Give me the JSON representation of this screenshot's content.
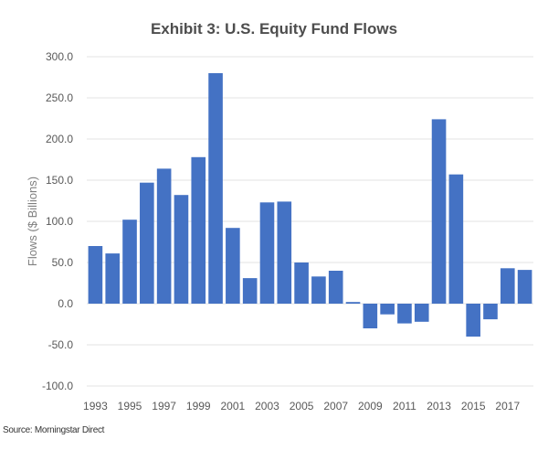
{
  "chart_data": {
    "type": "bar",
    "title": "Exhibit 3: U.S. Equity Fund Flows",
    "xlabel": "",
    "ylabel": "Flows ($ Billions)",
    "ylim": [
      -100,
      300
    ],
    "yticks": [
      "300.0",
      "250.0",
      "200.0",
      "150.0",
      "100.0",
      "50.0",
      "0.0",
      "-50.0",
      "-100.0"
    ],
    "ytick_values": [
      300,
      250,
      200,
      150,
      100,
      50,
      0,
      -50,
      -100
    ],
    "grid": true,
    "bar_color": "#4472C4",
    "categories": [
      "1993",
      "1994",
      "1995",
      "1996",
      "1997",
      "1998",
      "1999",
      "2000",
      "2001",
      "2002",
      "2003",
      "2004",
      "2005",
      "2006",
      "2007",
      "2008",
      "2009",
      "2010",
      "2011",
      "2012",
      "2013",
      "2014",
      "2015",
      "2016",
      "2017",
      "2018"
    ],
    "xtick_labels": [
      "1993",
      "1995",
      "1997",
      "1999",
      "2001",
      "2003",
      "2005",
      "2007",
      "2009",
      "2011",
      "2013",
      "2015",
      "2017"
    ],
    "values": [
      70,
      61,
      102,
      147,
      164,
      132,
      178,
      280,
      92,
      31,
      123,
      124,
      50,
      33,
      40,
      2,
      -30,
      -13,
      -24,
      -22,
      224,
      157,
      -40,
      -19,
      43,
      41
    ]
  },
  "source": "Source: Morningstar Direct"
}
